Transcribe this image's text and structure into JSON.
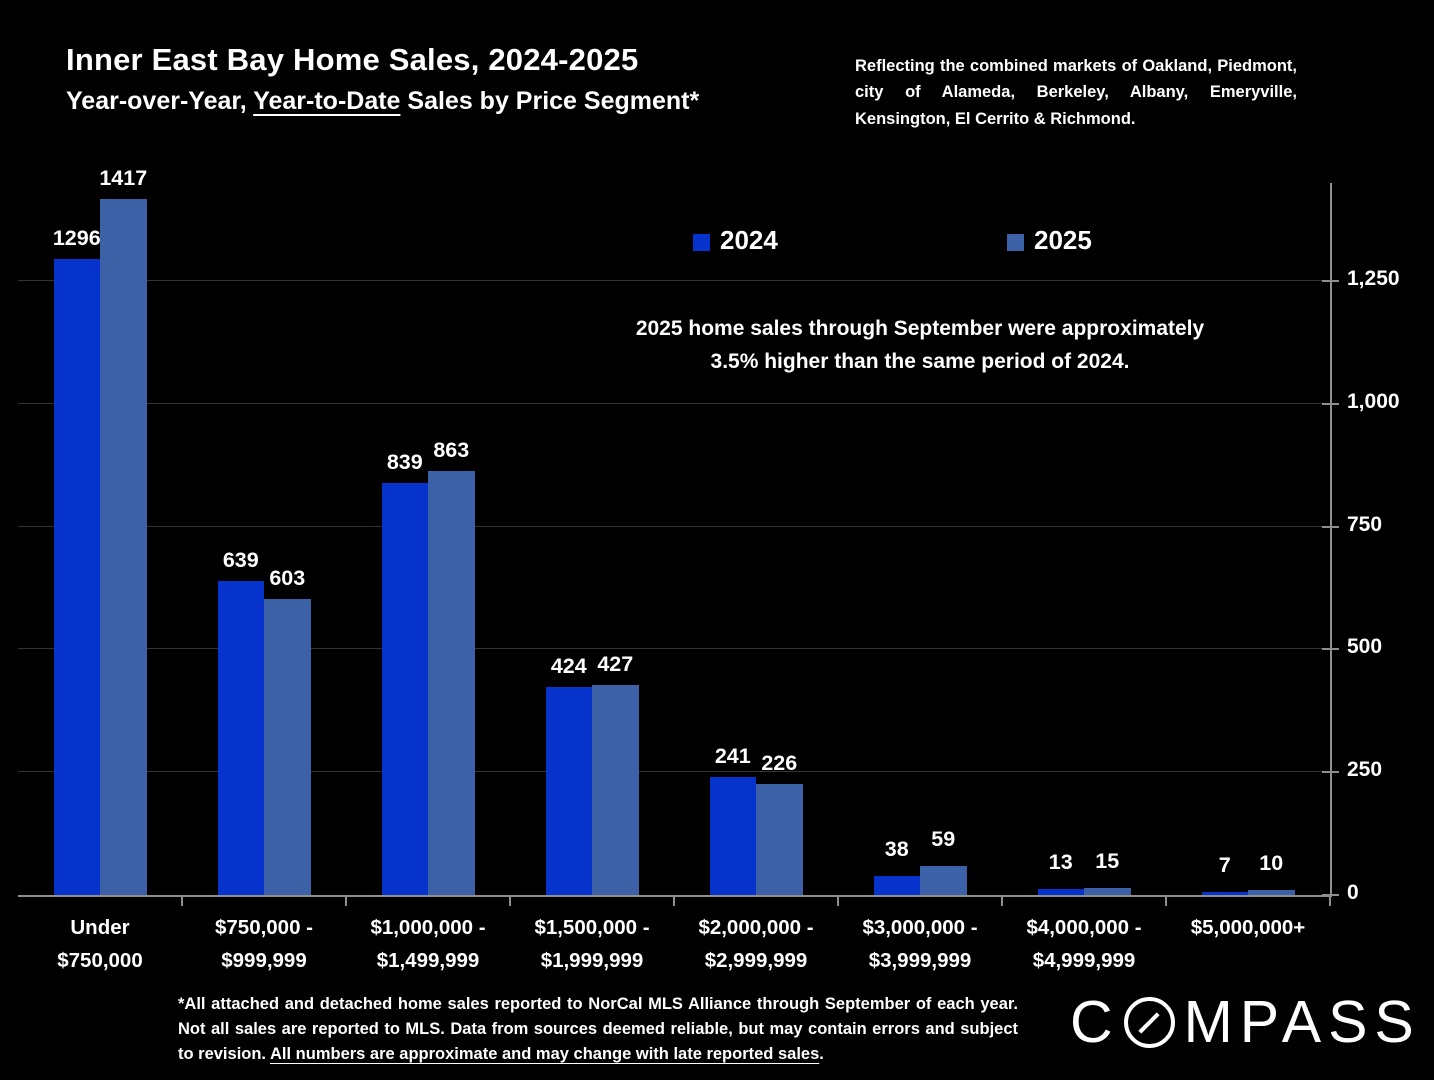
{
  "header": {
    "title": "Inner East Bay Home Sales, 2024-2025",
    "subtitle_prefix": "Year-over-Year, ",
    "subtitle_underlined": "Year-to-Date",
    "subtitle_suffix": " Sales by Price Segment*",
    "market_note": "Reflecting the combined markets of Oakland, Piedmont, city of Alameda, Berkeley, Albany, Emeryville, Kensington, El Cerrito & Richmond."
  },
  "annotation": {
    "line1": "2025 home sales through September were approximately",
    "line2": "3.5% higher than the same period of 2024."
  },
  "chart_data": {
    "type": "bar",
    "title": "Inner East Bay Home Sales, 2024-2025",
    "subtitle": "Year-over-Year, Year-to-Date Sales by Price Segment*",
    "categories": [
      [
        "Under",
        "$750,000"
      ],
      [
        "$750,000 -",
        "$999,999"
      ],
      [
        "$1,000,000 -",
        "$1,499,999"
      ],
      [
        "$1,500,000 -",
        "$1,999,999"
      ],
      [
        "$2,000,000 -",
        "$2,999,999"
      ],
      [
        "$3,000,000 -",
        "$3,999,999"
      ],
      [
        "$4,000,000 -",
        "$4,999,999"
      ],
      [
        "$5,000,000+"
      ]
    ],
    "series": [
      {
        "name": "2024",
        "color": "#0533cc",
        "values": [
          1296,
          639,
          839,
          424,
          241,
          38,
          13,
          7
        ]
      },
      {
        "name": "2025",
        "color": "#3c61a6",
        "values": [
          1417,
          603,
          863,
          427,
          226,
          59,
          15,
          10
        ]
      }
    ],
    "xlabel": "",
    "ylabel": "",
    "ylim": [
      0,
      1450
    ],
    "yticks": [
      0,
      250,
      500,
      750,
      1000,
      1250
    ],
    "ytick_labels": [
      "0",
      "250",
      "500",
      "750",
      "1,000",
      "1,250"
    ],
    "y_axis_side": "right",
    "grid": true,
    "value_labels": true,
    "legend_position": "top-center",
    "background": "#000000",
    "text_color": "#ffffff"
  },
  "footnote": {
    "prefix": "*All attached and detached home sales reported to NorCal MLS Alliance through September of each year. Not all sales are reported to MLS. Data from sources deemed reliable, but may contain errors and subject to revision. ",
    "underlined": "All numbers are approximate and may change with late reported sales",
    "suffix": "."
  },
  "logo": {
    "brand": "COMPASS"
  }
}
